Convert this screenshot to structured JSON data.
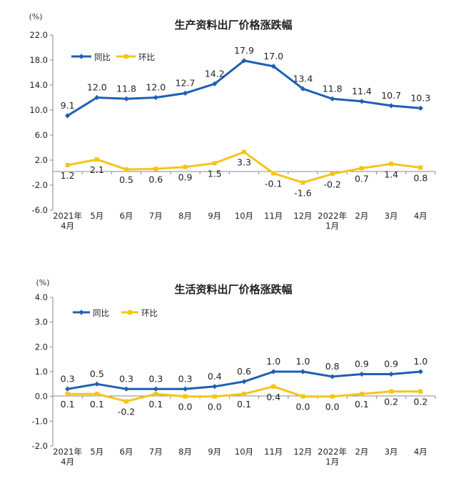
{
  "colors": {
    "yoy": "#1f5fb4",
    "mom": "#f5c518",
    "axis": "#888888",
    "text": "#222222"
  },
  "chart_data": [
    {
      "type": "line",
      "title": "生产资料出厂价格涨跌幅",
      "yunit": "(%)",
      "ylim": [
        -6.0,
        22.0
      ],
      "yticks": [
        "22.0",
        "18.0",
        "14.0",
        "10.0",
        "6.0",
        "2.0",
        "-2.0",
        "-6.0"
      ],
      "ytick_values": [
        22,
        18,
        14,
        10,
        6,
        2,
        -2,
        -6
      ],
      "categories": [
        [
          "2021年",
          "4月"
        ],
        [
          "5月"
        ],
        [
          "6月"
        ],
        [
          "7月"
        ],
        [
          "8月"
        ],
        [
          "9月"
        ],
        [
          "10月"
        ],
        [
          "11月"
        ],
        [
          "12月"
        ],
        [
          "2022年",
          "1月"
        ],
        [
          "2月"
        ],
        [
          "3月"
        ],
        [
          "4月"
        ]
      ],
      "legend_position": "top-left",
      "series": [
        {
          "name": "同比",
          "values": [
            9.1,
            12.0,
            11.8,
            12.0,
            12.7,
            14.2,
            17.9,
            17.0,
            13.4,
            11.8,
            11.4,
            10.7,
            10.3
          ],
          "labels": [
            "9.1",
            "12.0",
            "11.8",
            "12.0",
            "12.7",
            "14.2",
            "17.9",
            "17.0",
            "13.4",
            "11.8",
            "11.4",
            "10.7",
            "10.3"
          ]
        },
        {
          "name": "环比",
          "values": [
            1.2,
            2.1,
            0.5,
            0.6,
            0.9,
            1.5,
            3.3,
            -0.1,
            -1.6,
            -0.2,
            0.7,
            1.4,
            0.8
          ],
          "labels": [
            "1.2",
            "2.1",
            "0.5",
            "0.6",
            "0.9",
            "1.5",
            "3.3",
            "-0.1",
            "-1.6",
            "-0.2",
            "0.7",
            "1.4",
            "0.8"
          ]
        }
      ]
    },
    {
      "type": "line",
      "title": "生活资料出厂价格涨跌幅",
      "yunit": "(%)",
      "ylim": [
        -2.0,
        4.0
      ],
      "yticks": [
        "4.0",
        "3.0",
        "2.0",
        "1.0",
        "0.0",
        "-1.0",
        "-2.0"
      ],
      "ytick_values": [
        4,
        3,
        2,
        1,
        0,
        -1,
        -2
      ],
      "categories": [
        [
          "2021年",
          "4月"
        ],
        [
          "5月"
        ],
        [
          "6月"
        ],
        [
          "7月"
        ],
        [
          "8月"
        ],
        [
          "9月"
        ],
        [
          "10月"
        ],
        [
          "11月"
        ],
        [
          "12月"
        ],
        [
          "2022年",
          "1月"
        ],
        [
          "2月"
        ],
        [
          "3月"
        ],
        [
          "4月"
        ]
      ],
      "legend_position": "top-left",
      "series": [
        {
          "name": "同比",
          "values": [
            0.3,
            0.5,
            0.3,
            0.3,
            0.3,
            0.4,
            0.6,
            1.0,
            1.0,
            0.8,
            0.9,
            0.9,
            1.0
          ],
          "labels": [
            "0.3",
            "0.5",
            "0.3",
            "0.3",
            "0.3",
            "0.4",
            "0.6",
            "1.0",
            "1.0",
            "0.8",
            "0.9",
            "0.9",
            "1.0"
          ]
        },
        {
          "name": "环比",
          "values": [
            0.1,
            0.1,
            -0.2,
            0.1,
            0.0,
            0.0,
            0.1,
            0.4,
            0.0,
            0.0,
            0.1,
            0.2,
            0.2
          ],
          "labels": [
            "0.1",
            "0.1",
            "-0.2",
            "0.1",
            "0.0",
            "0.0",
            "0.1",
            "0.4",
            "0.0",
            "0.0",
            "0.1",
            "0.2",
            "0.2"
          ]
        }
      ]
    }
  ]
}
